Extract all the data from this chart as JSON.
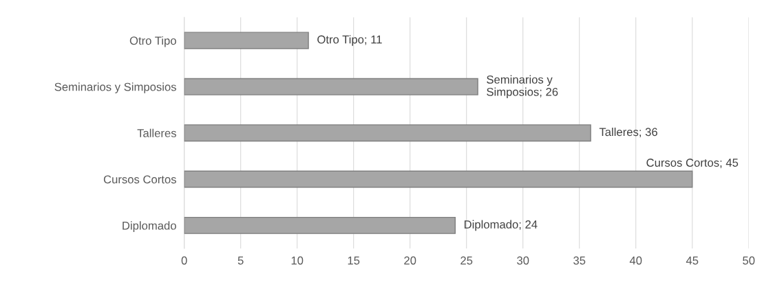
{
  "chart_data": {
    "type": "bar",
    "orientation": "horizontal",
    "categories": [
      "Otro Tipo",
      "Seminarios y Simposios",
      "Talleres",
      "Cursos Cortos",
      "Diplomado"
    ],
    "values": [
      11,
      26,
      36,
      45,
      24
    ],
    "color": "#a6a6a6",
    "value_labels": [
      "Otro Tipo; 11",
      "Seminarios y\nSimposios; 26",
      "Talleres; 36",
      "Cursos Cortos; 45",
      "Diplomado; 24"
    ],
    "xlim": [
      0,
      50
    ],
    "xticks": [
      0,
      5,
      10,
      15,
      20,
      25,
      30,
      35,
      40,
      45,
      50
    ],
    "grid": "x",
    "legend": false
  }
}
